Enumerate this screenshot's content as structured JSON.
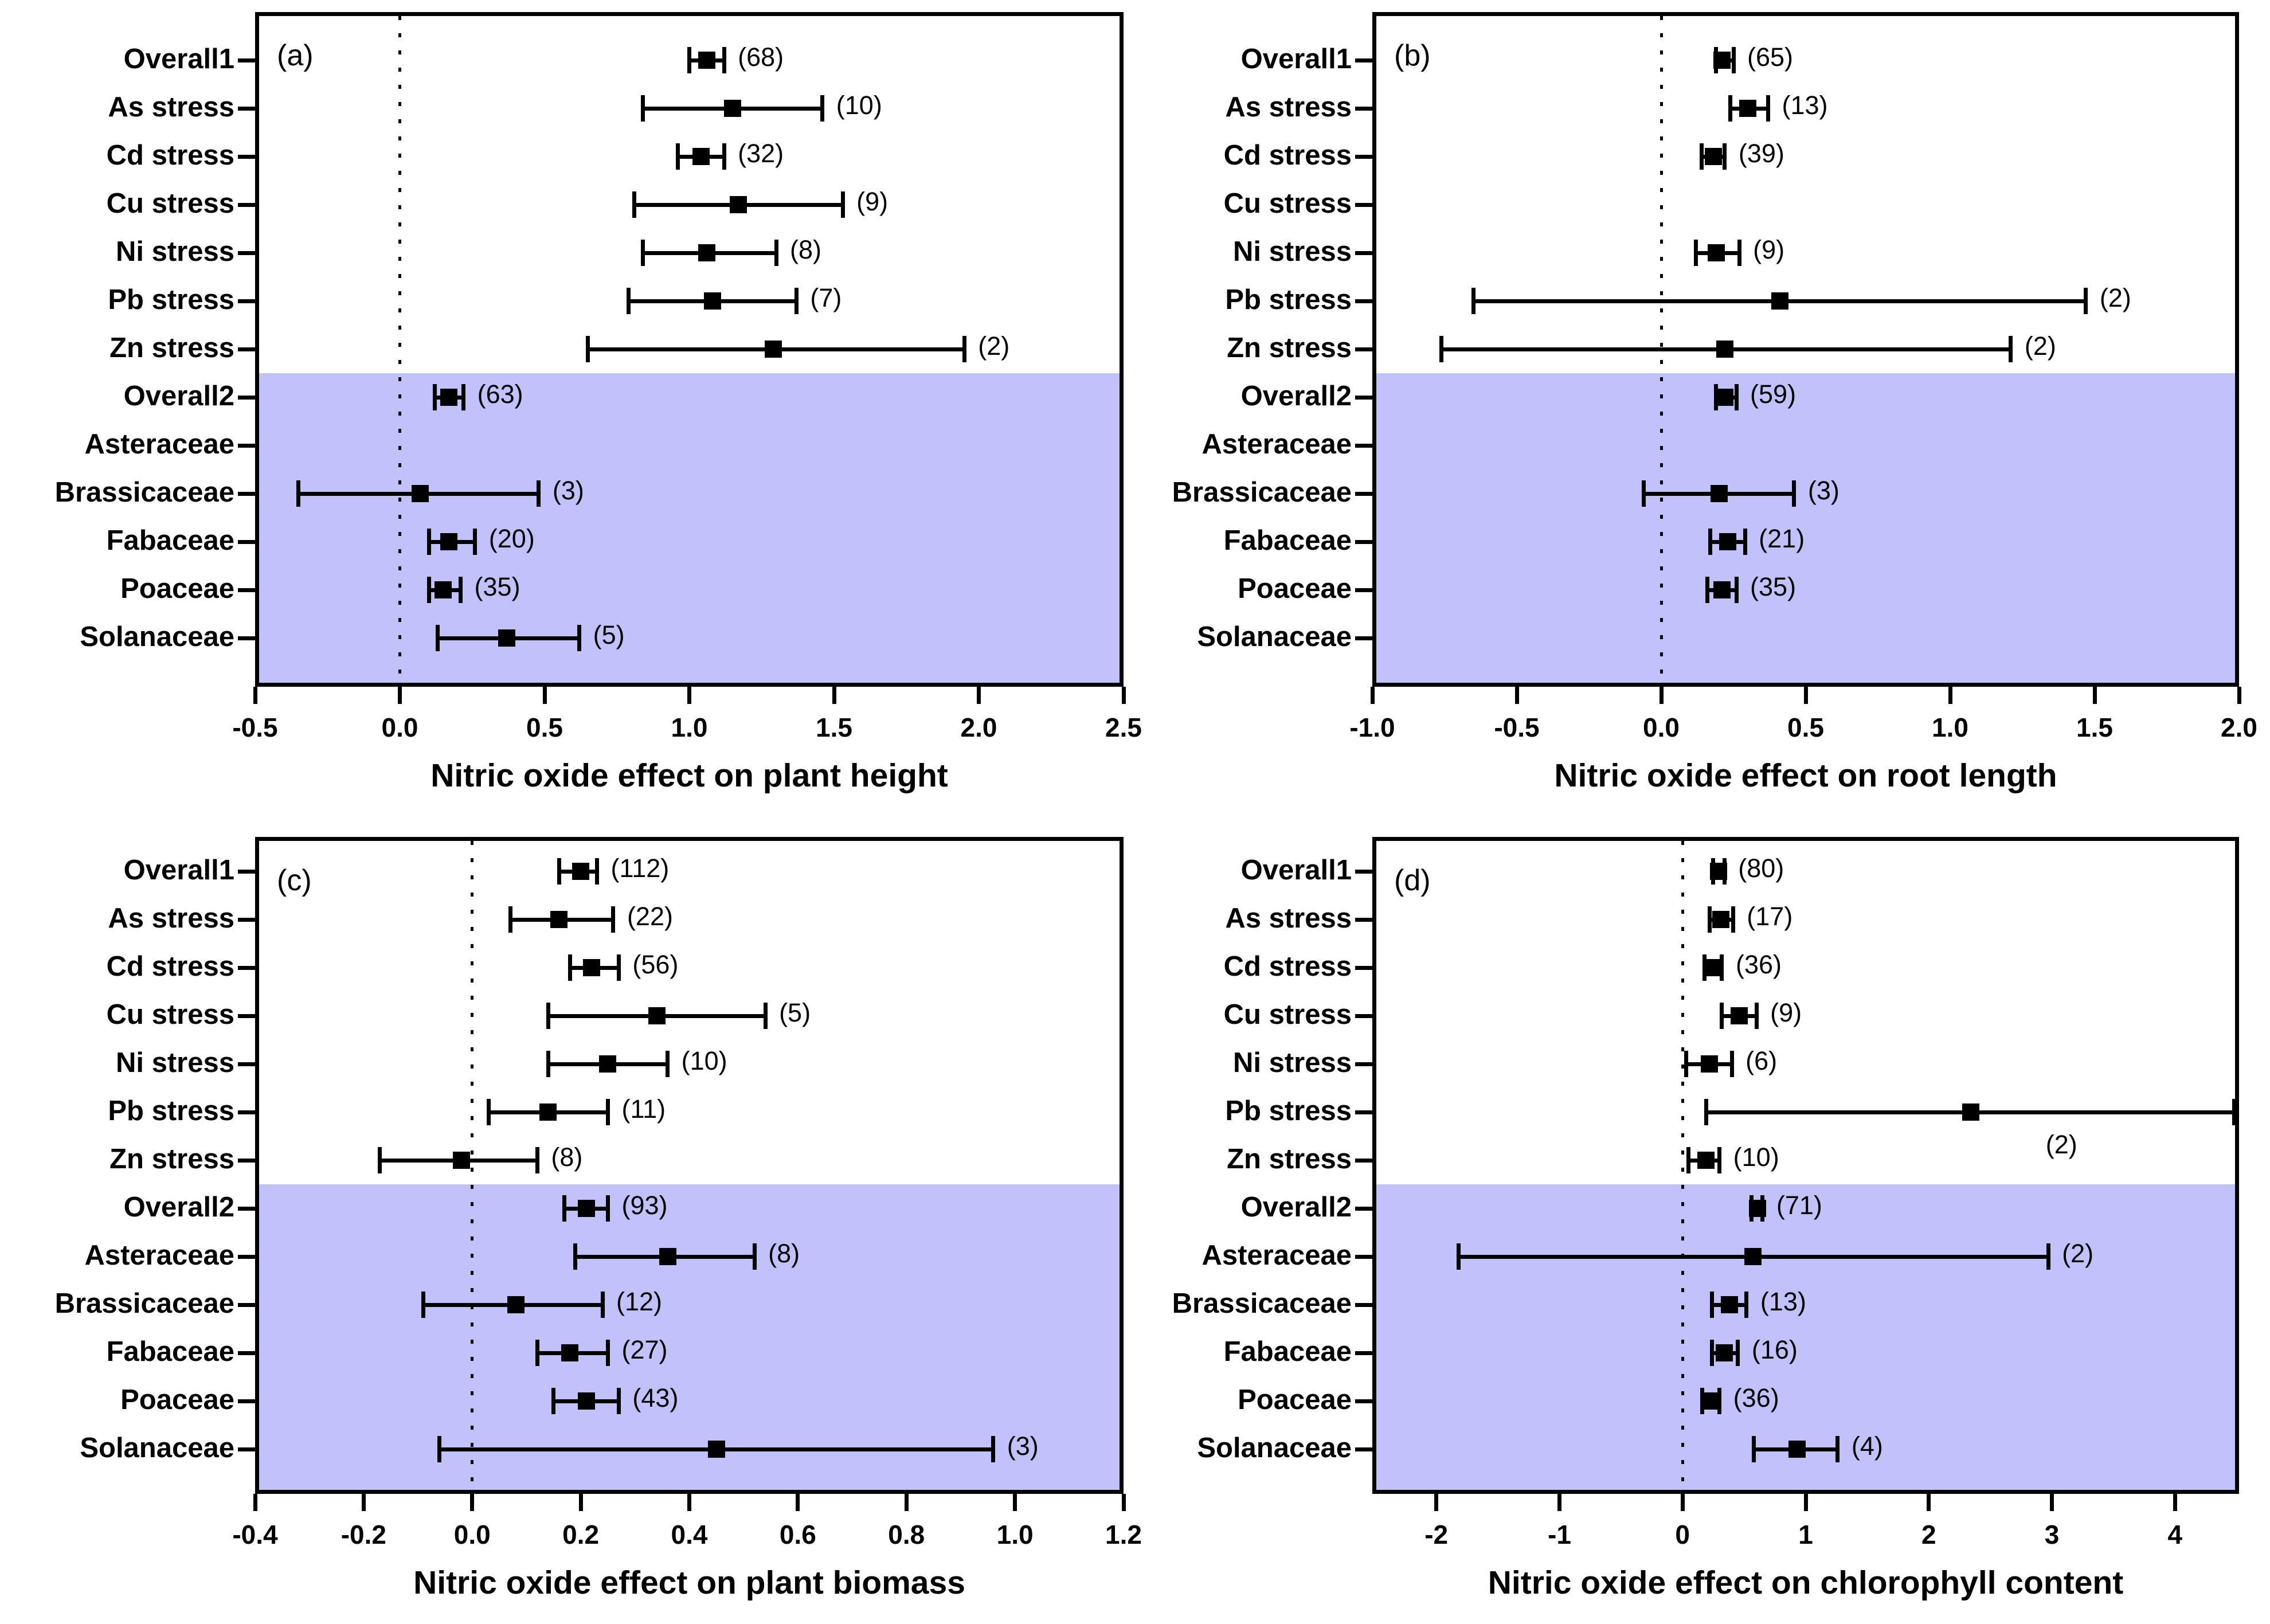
{
  "chart_data": {
    "type": "scatter",
    "subtype": "forest-plot-error-bars",
    "description": "Four-panel meta-analysis forest plots of nitric oxide effects under heavy metal stress",
    "marker": "filled-square",
    "colors": {
      "ink": "#000000",
      "band": "#c1c1fb",
      "background": "#ffffff"
    },
    "band_start_category": "Overall2",
    "categories": [
      "Overall1",
      "As stress",
      "Cd stress",
      "Cu stress",
      "Ni stress",
      "Pb stress",
      "Zn stress",
      "Overall2",
      "Asteraceae",
      "Brassicaceae",
      "Fabaceae",
      "Poaceae",
      "Solanaceae"
    ],
    "panels": [
      {
        "letter": "(a)",
        "xlabel": "Nitric oxide effect on plant height",
        "xlim": [
          -0.5,
          2.5
        ],
        "zero_line": 0,
        "grid": false,
        "xticks": [
          "-0.5",
          "0.0",
          "0.5",
          "1.0",
          "1.5",
          "2.0",
          "2.5"
        ],
        "xtick_values": [
          -0.5,
          0.0,
          0.5,
          1.0,
          1.5,
          2.0,
          2.5
        ],
        "rows": [
          {
            "category": "Overall1",
            "est": 1.06,
            "lo": 1.0,
            "hi": 1.12,
            "n": 68,
            "n_label": "(68)"
          },
          {
            "category": "As stress",
            "est": 1.15,
            "lo": 0.84,
            "hi": 1.46,
            "n": 10,
            "n_label": "(10)"
          },
          {
            "category": "Cd stress",
            "est": 1.04,
            "lo": 0.96,
            "hi": 1.12,
            "n": 32,
            "n_label": "(32)"
          },
          {
            "category": "Cu stress",
            "est": 1.17,
            "lo": 0.81,
            "hi": 1.53,
            "n": 9,
            "n_label": "(9)"
          },
          {
            "category": "Ni stress",
            "est": 1.06,
            "lo": 0.84,
            "hi": 1.3,
            "n": 8,
            "n_label": "(8)"
          },
          {
            "category": "Pb stress",
            "est": 1.08,
            "lo": 0.79,
            "hi": 1.37,
            "n": 7,
            "n_label": "(7)"
          },
          {
            "category": "Zn stress",
            "est": 1.29,
            "lo": 0.65,
            "hi": 1.95,
            "n": 2,
            "n_label": "(2)"
          },
          {
            "category": "Overall2",
            "est": 0.17,
            "lo": 0.12,
            "hi": 0.22,
            "n": 63,
            "n_label": "(63)"
          },
          {
            "category": "Asteraceae",
            "empty": true
          },
          {
            "category": "Brassicaceae",
            "est": 0.07,
            "lo": -0.35,
            "hi": 0.48,
            "n": 3,
            "n_label": "(3)"
          },
          {
            "category": "Fabaceae",
            "est": 0.17,
            "lo": 0.1,
            "hi": 0.26,
            "n": 20,
            "n_label": "(20)"
          },
          {
            "category": "Poaceae",
            "est": 0.15,
            "lo": 0.1,
            "hi": 0.21,
            "n": 35,
            "n_label": "(35)"
          },
          {
            "category": "Solanaceae",
            "est": 0.37,
            "lo": 0.13,
            "hi": 0.62,
            "n": 5,
            "n_label": "(5)"
          }
        ]
      },
      {
        "letter": "(b)",
        "xlabel": "Nitric oxide effect on root length",
        "xlim": [
          -1.0,
          2.0
        ],
        "zero_line": 0,
        "grid": false,
        "xticks": [
          "-1.0",
          "-0.5",
          "0.0",
          "0.5",
          "1.0",
          "1.5",
          "2.0"
        ],
        "xtick_values": [
          -1.0,
          -0.5,
          0.0,
          0.5,
          1.0,
          1.5,
          2.0
        ],
        "rows": [
          {
            "category": "Overall1",
            "est": 0.21,
            "lo": 0.19,
            "hi": 0.25,
            "n": 65,
            "n_label": "(65)"
          },
          {
            "category": "As stress",
            "est": 0.3,
            "lo": 0.24,
            "hi": 0.37,
            "n": 13,
            "n_label": "(13)"
          },
          {
            "category": "Cd stress",
            "est": 0.18,
            "lo": 0.14,
            "hi": 0.22,
            "n": 39,
            "n_label": "(39)"
          },
          {
            "category": "Cu stress",
            "empty": true
          },
          {
            "category": "Ni stress",
            "est": 0.19,
            "lo": 0.12,
            "hi": 0.27,
            "n": 9,
            "n_label": "(9)"
          },
          {
            "category": "Pb stress",
            "est": 0.41,
            "lo": -0.65,
            "hi": 1.47,
            "n": 2,
            "n_label": "(2)"
          },
          {
            "category": "Zn stress",
            "est": 0.22,
            "lo": -0.76,
            "hi": 1.21,
            "n": 2,
            "n_label": "(2)"
          },
          {
            "category": "Overall2",
            "est": 0.22,
            "lo": 0.19,
            "hi": 0.26,
            "n": 59,
            "n_label": "(59)"
          },
          {
            "category": "Asteraceae",
            "empty": true
          },
          {
            "category": "Brassicaceae",
            "est": 0.2,
            "lo": -0.06,
            "hi": 0.46,
            "n": 3,
            "n_label": "(3)"
          },
          {
            "category": "Fabaceae",
            "est": 0.23,
            "lo": 0.17,
            "hi": 0.29,
            "n": 21,
            "n_label": "(21)"
          },
          {
            "category": "Poaceae",
            "est": 0.21,
            "lo": 0.16,
            "hi": 0.26,
            "n": 35,
            "n_label": "(35)"
          },
          {
            "category": "Solanaceae",
            "empty": true
          }
        ]
      },
      {
        "letter": "(c)",
        "xlabel": "Nitric oxide effect on plant biomass",
        "xlim": [
          -0.4,
          1.2
        ],
        "zero_line": 0,
        "grid": false,
        "xticks": [
          "-0.4",
          "-0.2",
          "0.0",
          "0.2",
          "0.4",
          "0.6",
          "0.8",
          "1.0",
          "1.2"
        ],
        "xtick_values": [
          -0.4,
          -0.2,
          0.0,
          0.2,
          0.4,
          0.6,
          0.8,
          1.0,
          1.2
        ],
        "rows": [
          {
            "category": "Overall1",
            "est": 0.2,
            "lo": 0.16,
            "hi": 0.23,
            "n": 112,
            "n_label": "(112)"
          },
          {
            "category": "As stress",
            "est": 0.16,
            "lo": 0.07,
            "hi": 0.26,
            "n": 22,
            "n_label": "(22)"
          },
          {
            "category": "Cd stress",
            "est": 0.22,
            "lo": 0.18,
            "hi": 0.27,
            "n": 56,
            "n_label": "(56)"
          },
          {
            "category": "Cu stress",
            "est": 0.34,
            "lo": 0.14,
            "hi": 0.54,
            "n": 5,
            "n_label": "(5)"
          },
          {
            "category": "Ni stress",
            "est": 0.25,
            "lo": 0.14,
            "hi": 0.36,
            "n": 10,
            "n_label": "(10)"
          },
          {
            "category": "Pb stress",
            "est": 0.14,
            "lo": 0.03,
            "hi": 0.25,
            "n": 11,
            "n_label": "(11)"
          },
          {
            "category": "Zn stress",
            "est": -0.02,
            "lo": -0.17,
            "hi": 0.12,
            "n": 8,
            "n_label": "(8)"
          },
          {
            "category": "Overall2",
            "est": 0.21,
            "lo": 0.17,
            "hi": 0.25,
            "n": 93,
            "n_label": "(93)"
          },
          {
            "category": "Asteraceae",
            "est": 0.36,
            "lo": 0.19,
            "hi": 0.52,
            "n": 8,
            "n_label": "(8)"
          },
          {
            "category": "Brassicaceae",
            "est": 0.08,
            "lo": -0.09,
            "hi": 0.24,
            "n": 12,
            "n_label": "(12)"
          },
          {
            "category": "Fabaceae",
            "est": 0.18,
            "lo": 0.12,
            "hi": 0.25,
            "n": 27,
            "n_label": "(27)"
          },
          {
            "category": "Poaceae",
            "est": 0.21,
            "lo": 0.15,
            "hi": 0.27,
            "n": 43,
            "n_label": "(43)"
          },
          {
            "category": "Solanaceae",
            "est": 0.45,
            "lo": -0.06,
            "hi": 0.96,
            "n": 3,
            "n_label": "(3)"
          }
        ]
      },
      {
        "letter": "(d)",
        "xlabel": "Nitric oxide effect on chlorophyll content",
        "xlim": [
          -2.52,
          4.52
        ],
        "zero_line": 0,
        "grid": false,
        "xticks": [
          "-2",
          "-1",
          "0",
          "1",
          "2",
          "3",
          "4"
        ],
        "xtick_values": [
          -2,
          -1,
          0,
          1,
          2,
          3,
          4
        ],
        "rows": [
          {
            "category": "Overall1",
            "est": 0.29,
            "lo": 0.25,
            "hi": 0.34,
            "n": 80,
            "n_label": "(80)"
          },
          {
            "category": "As stress",
            "est": 0.31,
            "lo": 0.22,
            "hi": 0.41,
            "n": 17,
            "n_label": "(17)"
          },
          {
            "category": "Cd stress",
            "est": 0.25,
            "lo": 0.18,
            "hi": 0.32,
            "n": 36,
            "n_label": "(36)"
          },
          {
            "category": "Cu stress",
            "est": 0.46,
            "lo": 0.32,
            "hi": 0.6,
            "n": 9,
            "n_label": "(9)"
          },
          {
            "category": "Ni stress",
            "est": 0.22,
            "lo": 0.03,
            "hi": 0.4,
            "n": 6,
            "n_label": "(6)"
          },
          {
            "category": "Pb stress",
            "est": 2.34,
            "lo": 0.19,
            "hi": 4.48,
            "n": 2,
            "n_label": "(2)",
            "label_x": 2.95,
            "label_dy": 62
          },
          {
            "category": "Zn stress",
            "est": 0.19,
            "lo": 0.05,
            "hi": 0.3,
            "n": 10,
            "n_label": "(10)"
          },
          {
            "category": "Overall2",
            "est": 0.61,
            "lo": 0.56,
            "hi": 0.65,
            "n": 71,
            "n_label": "(71)"
          },
          {
            "category": "Asteraceae",
            "est": 0.57,
            "lo": -1.82,
            "hi": 2.97,
            "n": 2,
            "n_label": "(2)"
          },
          {
            "category": "Brassicaceae",
            "est": 0.38,
            "lo": 0.24,
            "hi": 0.52,
            "n": 13,
            "n_label": "(13)"
          },
          {
            "category": "Fabaceae",
            "est": 0.34,
            "lo": 0.24,
            "hi": 0.45,
            "n": 16,
            "n_label": "(16)"
          },
          {
            "category": "Poaceae",
            "est": 0.22,
            "lo": 0.16,
            "hi": 0.3,
            "n": 36,
            "n_label": "(36)"
          },
          {
            "category": "Solanaceae",
            "est": 0.93,
            "lo": 0.58,
            "hi": 1.26,
            "n": 4,
            "n_label": "(4)"
          }
        ]
      }
    ]
  }
}
